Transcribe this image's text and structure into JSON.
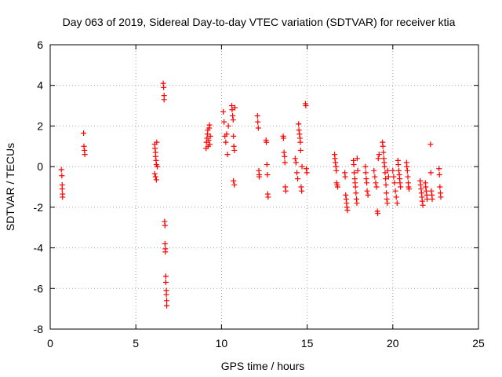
{
  "chart_data": {
    "type": "scatter",
    "title": "Day 063 of 2019, Sidereal Day-to-day VTEC variation (SDTVAR) for receiver ktia",
    "xlabel": "GPS time / hours",
    "ylabel": "SDTVAR / TECUs",
    "xlim": [
      0,
      25
    ],
    "ylim": [
      -8,
      6
    ],
    "xticks": [
      "0",
      "5",
      "10",
      "15",
      "20",
      "25"
    ],
    "yticks": [
      "-8",
      "-6",
      "-4",
      "-2",
      "0",
      "2",
      "4",
      "6"
    ],
    "grid": true,
    "marker": "+",
    "color": "#ff0000",
    "series": [
      {
        "name": "SDTVAR",
        "points": [
          [
            0.65,
            -0.15
          ],
          [
            0.68,
            -0.45
          ],
          [
            0.7,
            -0.9
          ],
          [
            0.7,
            -1.1
          ],
          [
            0.72,
            -1.35
          ],
          [
            0.72,
            -1.5
          ],
          [
            1.95,
            1.65
          ],
          [
            1.97,
            1.0
          ],
          [
            2.0,
            0.8
          ],
          [
            2.02,
            0.6
          ],
          [
            6.1,
            1.1
          ],
          [
            6.12,
            0.9
          ],
          [
            6.15,
            0.7
          ],
          [
            6.15,
            0.5
          ],
          [
            6.18,
            0.3
          ],
          [
            6.2,
            0.1
          ],
          [
            6.1,
            -0.35
          ],
          [
            6.15,
            -0.5
          ],
          [
            6.2,
            -0.65
          ],
          [
            6.22,
            1.2
          ],
          [
            6.25,
            0.0
          ],
          [
            6.6,
            4.1
          ],
          [
            6.62,
            3.9
          ],
          [
            6.65,
            3.5
          ],
          [
            6.65,
            3.3
          ],
          [
            6.68,
            -2.7
          ],
          [
            6.7,
            -2.9
          ],
          [
            6.7,
            -3.8
          ],
          [
            6.72,
            -4.05
          ],
          [
            6.72,
            -4.2
          ],
          [
            6.75,
            -5.4
          ],
          [
            6.75,
            -5.7
          ],
          [
            6.78,
            -6.1
          ],
          [
            6.78,
            -6.3
          ],
          [
            6.8,
            -6.6
          ],
          [
            6.8,
            -6.85
          ],
          [
            9.1,
            0.9
          ],
          [
            9.12,
            1.2
          ],
          [
            9.15,
            1.4
          ],
          [
            9.18,
            1.6
          ],
          [
            9.2,
            1.8
          ],
          [
            9.22,
            1.0
          ],
          [
            9.25,
            1.3
          ],
          [
            9.28,
            1.9
          ],
          [
            9.3,
            2.05
          ],
          [
            9.32,
            1.1
          ],
          [
            9.35,
            1.5
          ],
          [
            10.1,
            2.7
          ],
          [
            10.15,
            2.2
          ],
          [
            10.2,
            1.5
          ],
          [
            10.25,
            1.2
          ],
          [
            10.3,
            1.6
          ],
          [
            10.35,
            0.6
          ],
          [
            10.4,
            2.0
          ],
          [
            10.6,
            3.0
          ],
          [
            10.62,
            2.8
          ],
          [
            10.65,
            2.5
          ],
          [
            10.68,
            2.3
          ],
          [
            10.7,
            1.5
          ],
          [
            10.72,
            1.0
          ],
          [
            10.75,
            0.8
          ],
          [
            10.7,
            -0.7
          ],
          [
            10.75,
            -0.9
          ],
          [
            10.78,
            2.9
          ],
          [
            12.1,
            2.5
          ],
          [
            12.12,
            2.2
          ],
          [
            12.15,
            1.9
          ],
          [
            12.18,
            -0.2
          ],
          [
            12.2,
            -0.4
          ],
          [
            12.2,
            -0.5
          ],
          [
            12.6,
            1.3
          ],
          [
            12.62,
            1.2
          ],
          [
            12.65,
            0.1
          ],
          [
            12.68,
            -0.4
          ],
          [
            12.7,
            -1.35
          ],
          [
            12.72,
            -1.5
          ],
          [
            13.6,
            1.5
          ],
          [
            13.62,
            1.4
          ],
          [
            13.65,
            0.7
          ],
          [
            13.68,
            0.5
          ],
          [
            13.7,
            0.2
          ],
          [
            13.72,
            -1.0
          ],
          [
            13.75,
            -1.2
          ],
          [
            14.3,
            0.4
          ],
          [
            14.35,
            0.2
          ],
          [
            14.4,
            -0.3
          ],
          [
            14.45,
            -0.6
          ],
          [
            14.5,
            2.1
          ],
          [
            14.52,
            1.8
          ],
          [
            14.55,
            1.6
          ],
          [
            14.58,
            1.4
          ],
          [
            14.6,
            1.2
          ],
          [
            14.62,
            0.8
          ],
          [
            14.65,
            -1.0
          ],
          [
            14.68,
            -1.2
          ],
          [
            14.7,
            0.0
          ],
          [
            14.9,
            3.1
          ],
          [
            14.92,
            3.0
          ],
          [
            14.95,
            -0.1
          ],
          [
            14.98,
            -0.3
          ],
          [
            16.6,
            0.6
          ],
          [
            16.62,
            0.4
          ],
          [
            16.65,
            0.2
          ],
          [
            16.68,
            0.0
          ],
          [
            16.7,
            -0.2
          ],
          [
            16.72,
            -0.8
          ],
          [
            16.75,
            -0.9
          ],
          [
            16.78,
            -1.0
          ],
          [
            17.2,
            -0.3
          ],
          [
            17.22,
            -0.5
          ],
          [
            17.25,
            -1.4
          ],
          [
            17.28,
            -1.6
          ],
          [
            17.3,
            -1.8
          ],
          [
            17.32,
            -2.0
          ],
          [
            17.35,
            -2.15
          ],
          [
            17.7,
            0.3
          ],
          [
            17.72,
            0.1
          ],
          [
            17.75,
            -0.3
          ],
          [
            17.78,
            -0.6
          ],
          [
            17.8,
            -0.8
          ],
          [
            17.82,
            -1.0
          ],
          [
            17.85,
            -1.3
          ],
          [
            17.88,
            -1.6
          ],
          [
            17.9,
            -1.8
          ],
          [
            17.92,
            0.4
          ],
          [
            17.95,
            -0.2
          ],
          [
            18.4,
            0.0
          ],
          [
            18.42,
            -0.3
          ],
          [
            18.45,
            -0.6
          ],
          [
            18.48,
            -0.8
          ],
          [
            18.5,
            -1.2
          ],
          [
            18.55,
            -1.4
          ],
          [
            18.9,
            -0.2
          ],
          [
            18.95,
            -0.5
          ],
          [
            19.0,
            -0.8
          ],
          [
            19.05,
            -1.0
          ],
          [
            19.1,
            -2.2
          ],
          [
            19.12,
            -2.3
          ],
          [
            19.15,
            0.4
          ],
          [
            19.2,
            0.6
          ],
          [
            19.4,
            1.2
          ],
          [
            19.42,
            1.0
          ],
          [
            19.45,
            0.7
          ],
          [
            19.48,
            0.4
          ],
          [
            19.5,
            0.2
          ],
          [
            19.52,
            0.0
          ],
          [
            19.55,
            -0.3
          ],
          [
            19.58,
            -0.6
          ],
          [
            19.6,
            -0.9
          ],
          [
            19.62,
            -1.3
          ],
          [
            19.65,
            -1.6
          ],
          [
            19.68,
            -1.8
          ],
          [
            19.7,
            -0.2
          ],
          [
            19.75,
            -0.5
          ],
          [
            20.0,
            -0.2
          ],
          [
            20.05,
            -0.5
          ],
          [
            20.1,
            -0.8
          ],
          [
            20.15,
            -1.2
          ],
          [
            20.2,
            -1.5
          ],
          [
            20.25,
            -1.8
          ],
          [
            20.3,
            0.3
          ],
          [
            20.32,
            0.1
          ],
          [
            20.35,
            -0.2
          ],
          [
            20.38,
            -0.4
          ],
          [
            20.4,
            -0.6
          ],
          [
            20.42,
            -0.8
          ],
          [
            20.45,
            -1.0
          ],
          [
            20.8,
            0.2
          ],
          [
            20.82,
            0.0
          ],
          [
            20.85,
            -0.2
          ],
          [
            20.88,
            -0.5
          ],
          [
            20.9,
            -0.8
          ],
          [
            20.92,
            -1.0
          ],
          [
            20.95,
            -1.1
          ],
          [
            21.6,
            -0.7
          ],
          [
            21.62,
            -0.9
          ],
          [
            21.65,
            -1.1
          ],
          [
            21.68,
            -1.3
          ],
          [
            21.7,
            -1.5
          ],
          [
            21.72,
            -1.7
          ],
          [
            21.75,
            -1.9
          ],
          [
            21.9,
            -0.8
          ],
          [
            21.92,
            -1.0
          ],
          [
            21.95,
            -1.2
          ],
          [
            21.98,
            -1.4
          ],
          [
            22.0,
            -1.6
          ],
          [
            22.2,
            1.1
          ],
          [
            22.22,
            -0.3
          ],
          [
            22.25,
            -1.2
          ],
          [
            22.28,
            -1.4
          ],
          [
            22.3,
            -1.6
          ],
          [
            22.7,
            -0.1
          ],
          [
            22.72,
            -0.4
          ],
          [
            22.75,
            -1.0
          ],
          [
            22.78,
            -1.3
          ],
          [
            22.8,
            -1.5
          ]
        ]
      }
    ]
  }
}
